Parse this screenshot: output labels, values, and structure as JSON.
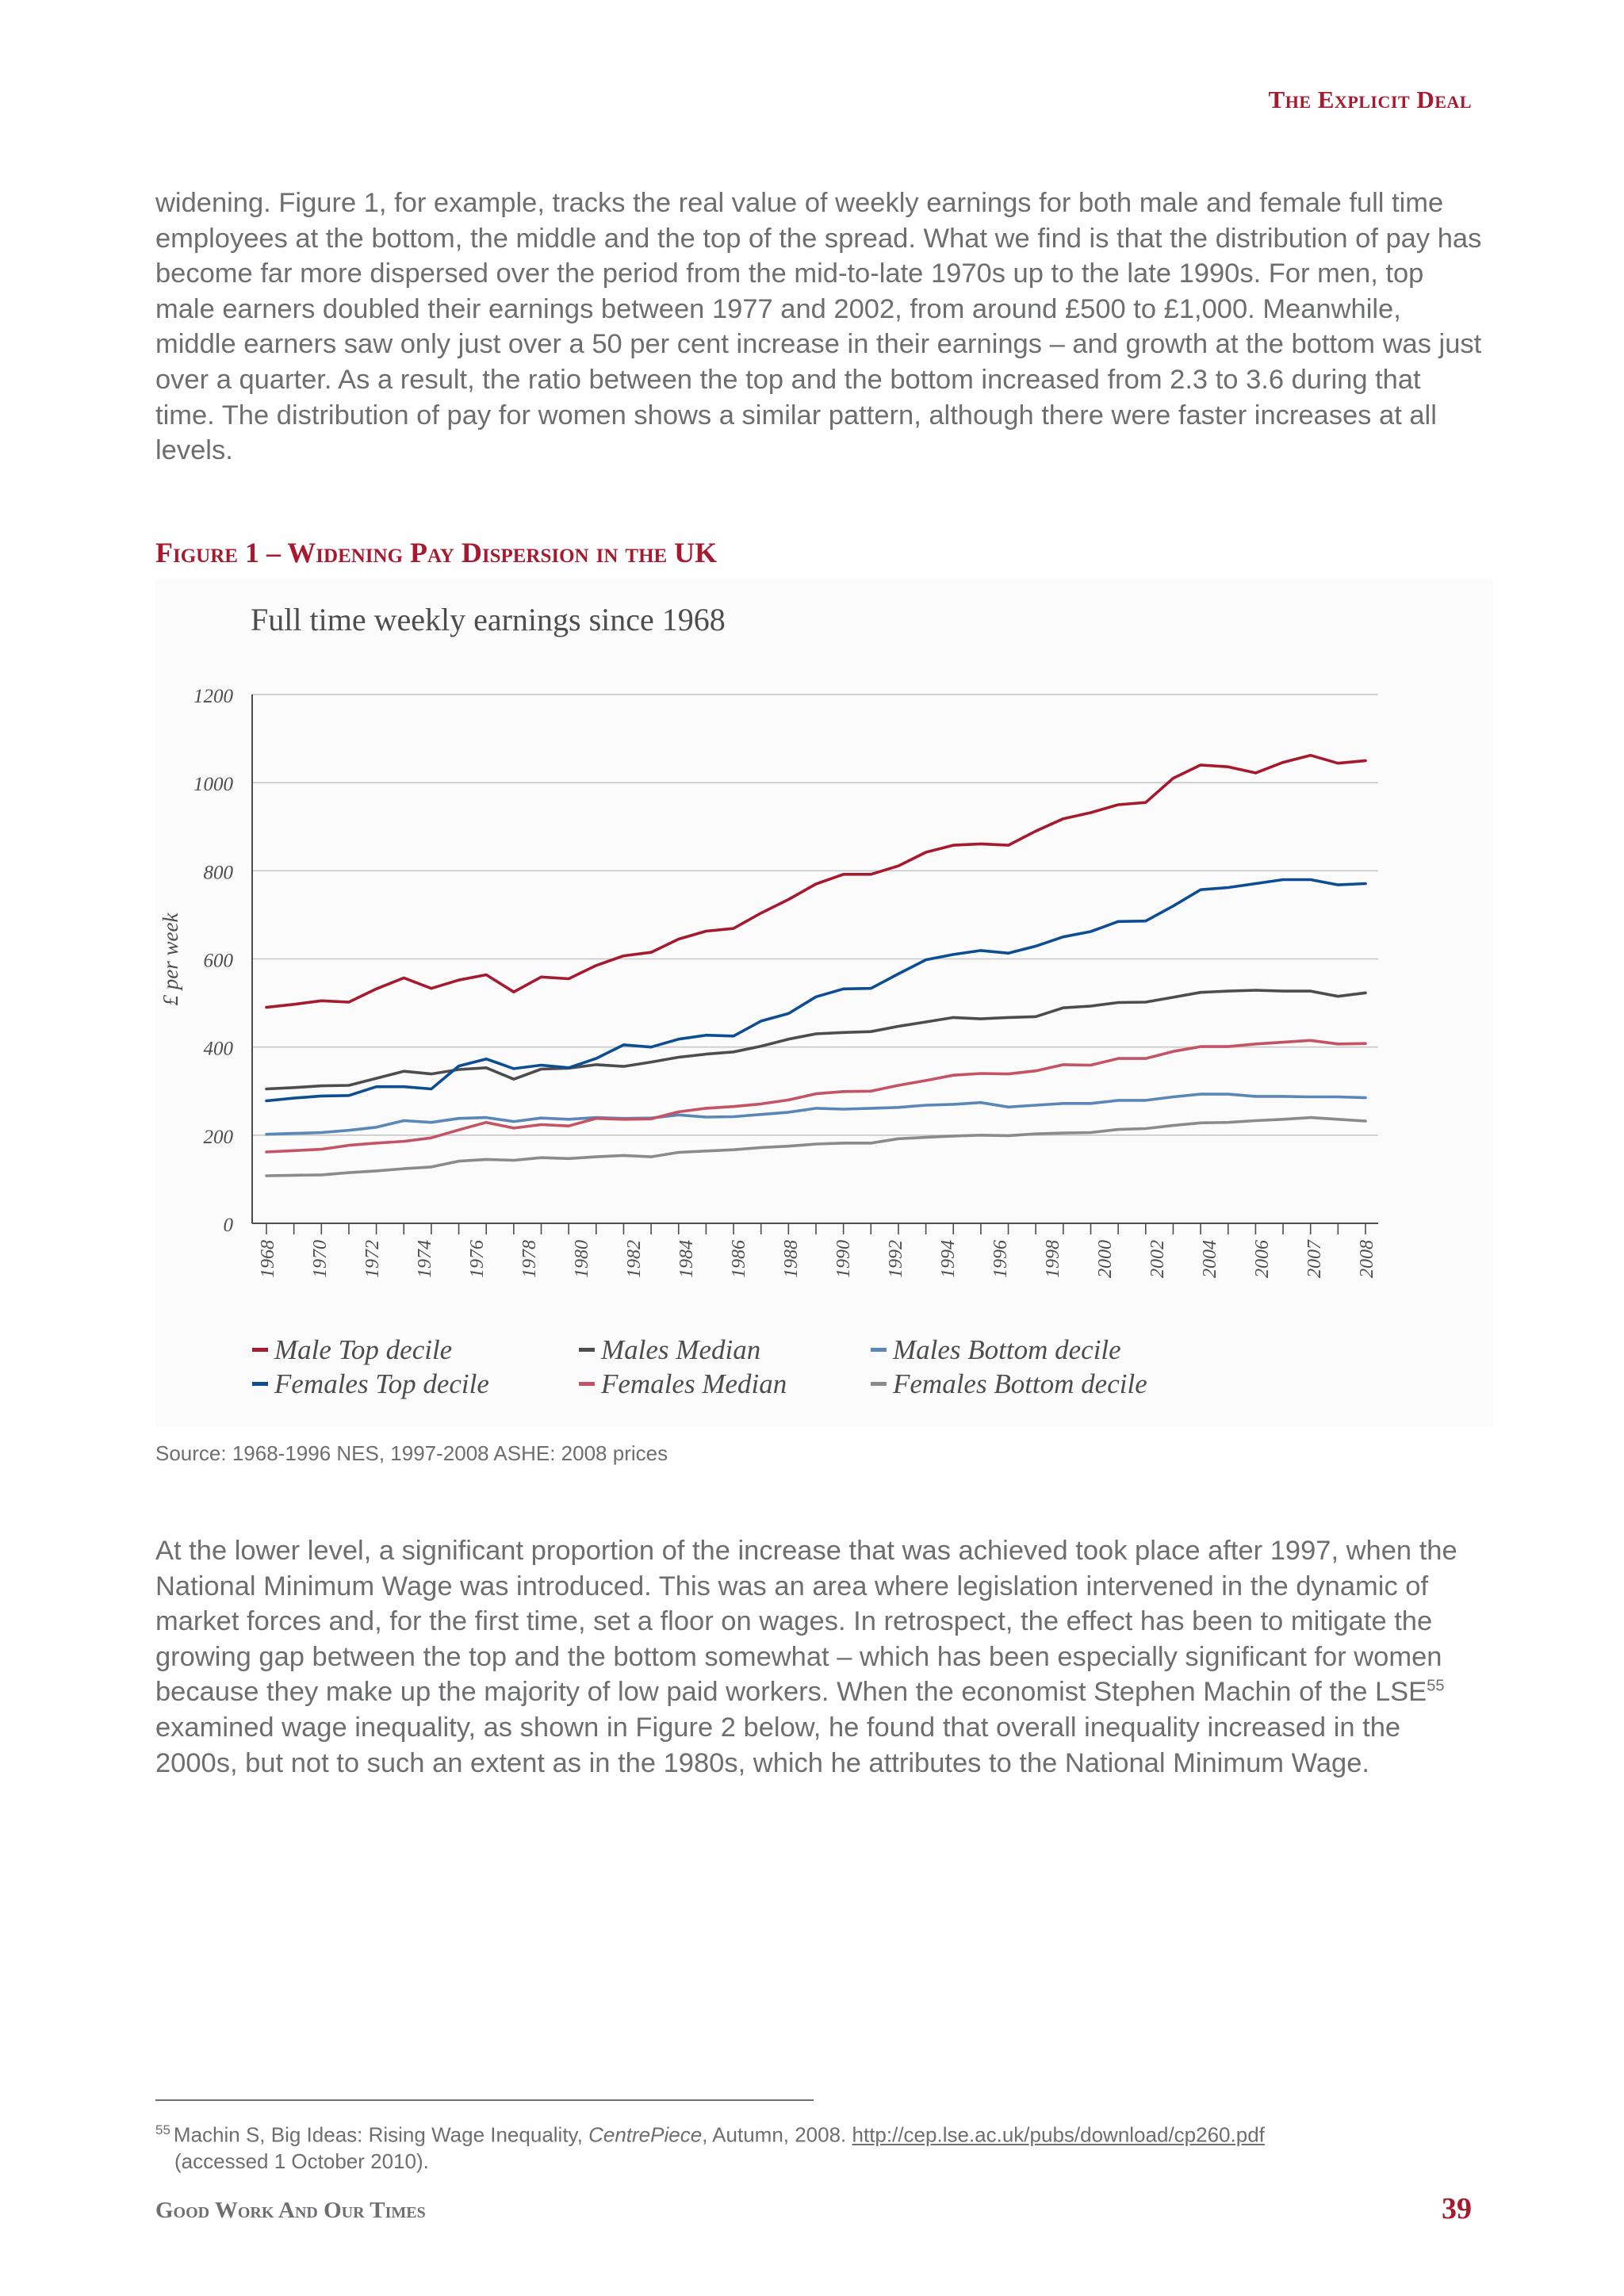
{
  "header": {
    "running_head": "The Explicit Deal"
  },
  "paragraph_1": "widening. Figure 1, for example, tracks the real value of weekly earnings for both male and female full time employees at the bottom, the middle and the top of the spread. What we find is that the distribution of pay has become far more dispersed over the period from the mid-to-late 1970s up to the late 1990s. For men, top male earners doubled their earnings between 1977 and 2002, from around £500 to £1,000. Meanwhile, middle earners saw only just over a 50 per cent increase in their earnings – and growth at the bottom was just over a quarter. As a result, the ratio between the top and the bottom increased from 2.3 to 3.6 during that time. The distribution of pay for women shows a similar pattern, although there were faster increases at all levels.",
  "figure": {
    "heading": "Figure 1 – Widening Pay Dispersion in the UK",
    "source": "Source: 1968-1996 NES, 1997-2008 ASHE: 2008 prices"
  },
  "chart_data": {
    "type": "line",
    "title": "Full time weekly earnings since 1968",
    "xlabel": "",
    "ylabel": "£ per week",
    "ylim": [
      0,
      1200
    ],
    "yticks": [
      "0",
      "200",
      "400",
      "600",
      "800",
      "1000",
      "1200"
    ],
    "grid": "horizontal",
    "legend_position": "bottom",
    "x": [
      1968,
      1969,
      1970,
      1971,
      1972,
      1973,
      1974,
      1975,
      1976,
      1977,
      1978,
      1979,
      1980,
      1981,
      1982,
      1983,
      1984,
      1985,
      1986,
      1987,
      1988,
      1989,
      1990,
      1991,
      1992,
      1993,
      1994,
      1995,
      1996,
      1997,
      1998,
      1999,
      2000,
      2001,
      2002,
      2003,
      2004,
      2005,
      2006,
      2007,
      2008
    ],
    "xtick_labels": [
      "1968",
      "1970",
      "1972",
      "1974",
      "1976",
      "1978",
      "1980",
      "1982",
      "1984",
      "1986",
      "1988",
      "1990",
      "1992",
      "1994",
      "1996",
      "1998",
      "2000",
      "2002",
      "2004",
      "2006",
      "2007",
      "2008"
    ],
    "series": [
      {
        "name": "Male Top decile",
        "color": "#a6192e",
        "values": [
          490,
          497,
          505,
          502,
          532,
          557,
          533,
          552,
          564,
          525,
          559,
          555,
          585,
          607,
          615,
          645,
          663,
          669,
          704,
          735,
          770,
          792,
          792,
          811,
          842,
          858,
          861,
          858,
          890,
          918,
          932,
          950,
          955,
          1010,
          1040,
          1036,
          1022,
          1046,
          1062,
          1044,
          1050
        ]
      },
      {
        "name": "Males Median",
        "color": "#4d4d4f",
        "values": [
          305,
          308,
          312,
          313,
          329,
          345,
          339,
          349,
          353,
          327,
          350,
          352,
          360,
          356,
          366,
          377,
          384,
          389,
          402,
          418,
          430,
          433,
          435,
          447,
          457,
          467,
          464,
          467,
          469,
          489,
          493,
          501,
          502,
          513,
          524,
          527,
          529,
          527,
          527,
          515,
          523
        ]
      },
      {
        "name": "Males Bottom decile",
        "color": "#5b87b8",
        "values": [
          202,
          204,
          206,
          211,
          218,
          233,
          229,
          238,
          240,
          231,
          239,
          236,
          240,
          238,
          239,
          246,
          241,
          242,
          247,
          252,
          261,
          259,
          261,
          263,
          268,
          270,
          274,
          264,
          268,
          272,
          272,
          279,
          279,
          287,
          293,
          293,
          288,
          288,
          287,
          287,
          285
        ]
      },
      {
        "name": "Females Top decile",
        "color": "#0d4e93",
        "values": [
          278,
          284,
          289,
          290,
          310,
          310,
          305,
          357,
          373,
          351,
          359,
          353,
          374,
          405,
          400,
          418,
          427,
          425,
          459,
          476,
          514,
          532,
          533,
          566,
          598,
          610,
          619,
          613,
          629,
          650,
          662,
          685,
          686,
          720,
          757,
          762,
          771,
          780,
          780,
          768,
          771
        ]
      },
      {
        "name": "Females Median",
        "color": "#c45365",
        "values": [
          162,
          165,
          168,
          177,
          182,
          186,
          194,
          212,
          229,
          216,
          224,
          221,
          238,
          236,
          237,
          253,
          261,
          265,
          271,
          280,
          294,
          299,
          300,
          313,
          324,
          336,
          340,
          339,
          346,
          360,
          359,
          374,
          374,
          390,
          401,
          401,
          407,
          411,
          415,
          407,
          408
        ]
      },
      {
        "name": "Females Bottom decile",
        "color": "#8a8b8d",
        "values": [
          108,
          109,
          110,
          115,
          119,
          124,
          128,
          141,
          145,
          143,
          149,
          147,
          151,
          154,
          151,
          161,
          164,
          167,
          172,
          175,
          180,
          182,
          182,
          192,
          195,
          198,
          200,
          199,
          203,
          205,
          206,
          213,
          215,
          222,
          228,
          229,
          233,
          236,
          240,
          236,
          232
        ]
      }
    ]
  },
  "paragraph_2": "At the lower level, a significant proportion of the increase that was achieved took place after 1997, when the National Minimum Wage was introduced. This was an area where legislation intervened in the dynamic of market forces and, for the first time, set a floor on wages. In retrospect, the effect has been to mitigate the growing gap between the top and the bottom somewhat – which has been especially significant for women because they make up the majority of low paid workers. When the economist Stephen Machin of the LSE",
  "paragraph_2_ref": "55",
  "paragraph_2_end": " examined wage inequality, as shown in Figure 2 below, he found that overall inequality increased in the 2000s, but not to such an extent as in the 1980s, which he attributes to the National Minimum Wage.",
  "footnote": {
    "number": "55",
    "text_before": "Machin S, Big Ideas: Rising Wage Inequality, ",
    "italic": "CentrePiece",
    "text_after": ", Autumn, 2008. ",
    "link": "http://cep.lse.ac.uk/pubs/download/cp260.pdf",
    "line2": "(accessed 1 October 2010)."
  },
  "footer": {
    "title": "Good Work And Our Times",
    "page_number": "39"
  }
}
